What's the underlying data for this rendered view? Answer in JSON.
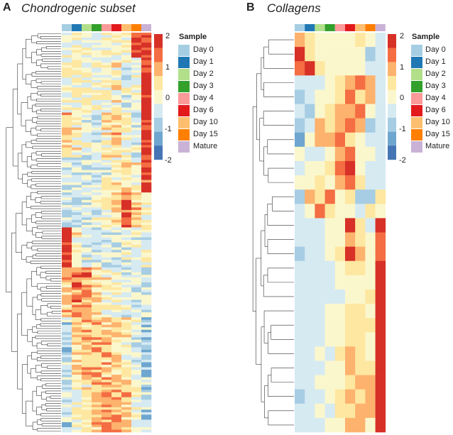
{
  "colors": {
    "samples": [
      "#a6cee3",
      "#1f78b4",
      "#b2df8a",
      "#33a02c",
      "#fb9a99",
      "#e31a1c",
      "#fdbf6f",
      "#ff7f00",
      "#cab2d6"
    ],
    "scale": [
      "#4575b4",
      "#6ea6cf",
      "#a6cde3",
      "#d6eaf2",
      "#fbf7cd",
      "#fee7a0",
      "#fdb26e",
      "#f46d43",
      "#d73027"
    ]
  },
  "chart_data": [
    {
      "type": "heatmap",
      "panel": "A",
      "title": "Chondrogenic subset",
      "columns": [
        "Day 0",
        "Day 1",
        "Day 2",
        "Day 3",
        "Day 4",
        "Day 6",
        "Day 10",
        "Day 15",
        "Mature"
      ],
      "row_count": 160,
      "value_range": [
        -2,
        2
      ],
      "colorbar_ticks": [
        "2",
        "1",
        "0",
        "-1",
        "-2"
      ],
      "legend_title": "Sample",
      "legend_entries": [
        "Day 0",
        "Day 1",
        "Day 2",
        "Day 3",
        "Day 4",
        "Day 6",
        "Day 10",
        "Day 15",
        "Mature"
      ],
      "row_clusters": [
        {
          "rows": 10,
          "profile": [
            0,
            0,
            0,
            0,
            0,
            0,
            0.3,
            2,
            2
          ]
        },
        {
          "rows": 22,
          "profile": [
            0,
            0,
            0,
            0,
            0,
            0.2,
            -0.3,
            0,
            2
          ]
        },
        {
          "rows": 18,
          "profile": [
            0.6,
            0.2,
            -0.3,
            -0.5,
            0.2,
            0.7,
            0,
            -0.4,
            2
          ]
        },
        {
          "rows": 14,
          "profile": [
            -0.5,
            -0.5,
            -0.5,
            -0.4,
            -0.2,
            0.2,
            0.5,
            0.2,
            1.8
          ]
        },
        {
          "rows": 14,
          "profile": [
            -0.6,
            -0.6,
            -0.4,
            -0.3,
            0,
            0.5,
            1.5,
            0.9,
            0.2
          ]
        },
        {
          "rows": 16,
          "profile": [
            2,
            0.4,
            -0.3,
            -0.5,
            -0.5,
            -0.5,
            -0.3,
            -0.2,
            -0.3
          ]
        },
        {
          "rows": 20,
          "profile": [
            0.7,
            1.3,
            1.2,
            0.5,
            0.2,
            0,
            -0.4,
            -0.5,
            -0.6
          ]
        },
        {
          "rows": 24,
          "profile": [
            -0.8,
            0.4,
            0.8,
            1,
            0.7,
            0.5,
            0.2,
            -0.4,
            -0.8
          ]
        },
        {
          "rows": 22,
          "profile": [
            -0.6,
            0,
            0.3,
            0.8,
            1.1,
            1.2,
            0.7,
            0,
            -0.8
          ]
        }
      ]
    },
    {
      "type": "heatmap",
      "panel": "B",
      "title": "Collagens",
      "columns": [
        "Day 0",
        "Day 1",
        "Day 2",
        "Day 3",
        "Day 4",
        "Day 6",
        "Day 10",
        "Day 15",
        "Mature"
      ],
      "row_count": 28,
      "value_range": [
        -2,
        2
      ],
      "colorbar_ticks": [
        "2",
        "1",
        "0",
        "-1",
        "-2"
      ],
      "legend_title": "Sample",
      "legend_entries": [
        "Day 0",
        "Day 1",
        "Day 2",
        "Day 3",
        "Day 4",
        "Day 6",
        "Day 10",
        "Day 15",
        "Mature"
      ],
      "values": [
        [
          1,
          0.5,
          0.2,
          0,
          -0.2,
          0.2,
          0.3,
          0,
          -0.3
        ],
        [
          2,
          0.5,
          0.2,
          0,
          0,
          0,
          0.2,
          -0.8,
          -0.5
        ],
        [
          1.5,
          2,
          0.5,
          0,
          0,
          0.2,
          0,
          -0.5,
          -0.5
        ],
        [
          -0.5,
          -0.5,
          -0.5,
          0,
          0.5,
          1,
          1.5,
          1,
          -0.5
        ],
        [
          -1,
          -0.5,
          0,
          0,
          0.5,
          1.5,
          0.5,
          1,
          -0.5
        ],
        [
          -0.5,
          -0.8,
          0,
          0.5,
          1,
          1,
          1.5,
          0,
          -0.5
        ],
        [
          -1,
          -0.5,
          1,
          0.5,
          1,
          1.5,
          1,
          -1,
          -0.5
        ],
        [
          -1.5,
          0,
          1,
          1,
          1.5,
          0.5,
          0,
          -0.5,
          -0.5
        ],
        [
          0,
          -0.5,
          -0.5,
          0,
          1,
          1.5,
          0,
          0,
          -0.5
        ],
        [
          -0.5,
          0,
          0,
          0.5,
          1.5,
          2,
          0,
          -0.5,
          -0.5
        ],
        [
          0,
          0,
          0.5,
          0,
          1,
          1.5,
          0.5,
          -0.5,
          -0.5
        ],
        [
          -1,
          1,
          0.5,
          1.5,
          0,
          0.5,
          -1,
          -1,
          0.5
        ],
        [
          -0.5,
          0,
          1.5,
          0.5,
          0,
          0,
          -0.5,
          0.5,
          0
        ],
        [
          -0.5,
          -0.5,
          -0.5,
          0,
          0,
          2,
          0.5,
          -0.5,
          2
        ],
        [
          -0.5,
          -0.5,
          -0.5,
          0,
          0,
          1,
          0.5,
          0,
          1.5
        ],
        [
          -1,
          -0.5,
          -0.5,
          0,
          0.5,
          2,
          1,
          0,
          1.5
        ],
        [
          -0.5,
          -0.5,
          -0.5,
          -0.5,
          0,
          0.5,
          0.3,
          0,
          2
        ],
        [
          -0.5,
          -0.5,
          -0.5,
          -0.5,
          0,
          0,
          0.2,
          0,
          2
        ],
        [
          -0.5,
          -0.5,
          -0.5,
          -0.5,
          -0.5,
          0,
          0,
          0.5,
          2
        ],
        [
          -0.5,
          -0.5,
          -0.5,
          -0.2,
          0,
          0.5,
          0.5,
          0,
          2
        ],
        [
          -0.5,
          -0.5,
          -0.5,
          0,
          0,
          0.5,
          0.5,
          0.5,
          2
        ],
        [
          -0.5,
          -0.5,
          -0.5,
          0,
          0,
          0.5,
          0.5,
          0,
          2
        ],
        [
          -0.5,
          -0.5,
          0,
          -0.5,
          0.5,
          1,
          0.5,
          0,
          2
        ],
        [
          -0.5,
          -0.5,
          -0.5,
          0,
          0,
          1,
          0.5,
          0.5,
          2
        ],
        [
          -0.5,
          -0.5,
          0,
          0,
          0,
          0.5,
          1,
          1,
          2
        ],
        [
          -0.8,
          -0.5,
          -0.5,
          0,
          0.5,
          1,
          0.5,
          1,
          2
        ],
        [
          -0.5,
          -0.5,
          0,
          -0.5,
          0.5,
          0.5,
          1,
          1,
          2
        ],
        [
          -0.5,
          -0.5,
          -0.5,
          0,
          0,
          1,
          1,
          0,
          2
        ]
      ]
    }
  ]
}
